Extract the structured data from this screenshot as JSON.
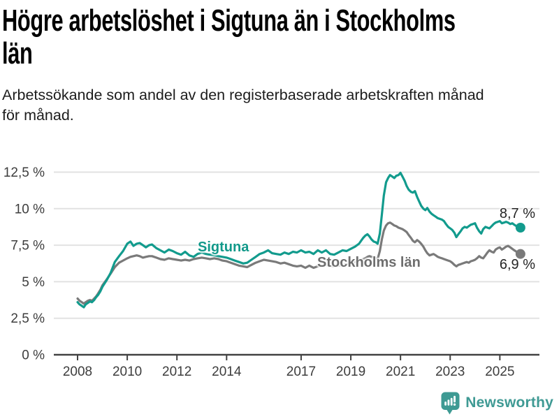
{
  "header": {
    "title_lines": [
      "Högre arbetslöshet i Sigtuna än i Stockholms",
      "län"
    ],
    "subtitle_lines": [
      "Arbetssökande som andel av den registerbaserade arbetskraften månad",
      "för månad."
    ]
  },
  "annotations": {
    "sigtuna_label": "Sigtuna",
    "stockholm_label": "Stockholms län",
    "sigtuna_end_value": "8,7 %",
    "stockholm_end_value": "6,9 %"
  },
  "footer": {
    "brand": "Newsworthy",
    "logo_icon": "bar-chart-speech-bubble-icon"
  },
  "colors": {
    "sigtuna_line": "#129b8d",
    "stockholm_line": "#7a7a7a",
    "grid": "#e2e2e2",
    "axis": "#424242",
    "logo_teal": "#3e9a93"
  },
  "chart_data": {
    "type": "line",
    "title": "Högre arbetslöshet i Sigtuna än i Stockholms län",
    "subtitle": "Arbetssökande som andel av den registerbaserade arbetskraften månad för månad.",
    "x_unit": "year (monthly observations)",
    "grid": true,
    "ylim": [
      0,
      13.2
    ],
    "xlim": [
      2007.9,
      2026.6
    ],
    "y_ticks": [
      {
        "v": 0,
        "label": "0 %"
      },
      {
        "v": 2.5,
        "label": "2,5 %"
      },
      {
        "v": 5,
        "label": "5 %"
      },
      {
        "v": 7.5,
        "label": "7,5 %"
      },
      {
        "v": 10,
        "label": "10 %"
      },
      {
        "v": 12.5,
        "label": "12,5 %"
      }
    ],
    "x_ticks": [
      {
        "v": 2008,
        "label": "2008"
      },
      {
        "v": 2010,
        "label": "2010"
      },
      {
        "v": 2012,
        "label": "2012"
      },
      {
        "v": 2014,
        "label": "2014"
      },
      {
        "v": 2017,
        "label": "2017"
      },
      {
        "v": 2019,
        "label": "2019"
      },
      {
        "v": 2021,
        "label": "2021"
      },
      {
        "v": 2023,
        "label": "2023"
      },
      {
        "v": 2025,
        "label": "2025"
      }
    ],
    "x": [
      2008.0,
      2008.08,
      2008.17,
      2008.25,
      2008.33,
      2008.42,
      2008.5,
      2008.58,
      2008.67,
      2008.75,
      2008.83,
      2008.92,
      2009.0,
      2009.17,
      2009.33,
      2009.5,
      2009.67,
      2009.83,
      2010.0,
      2010.13,
      2010.25,
      2010.38,
      2010.5,
      2010.63,
      2010.75,
      2010.88,
      2011.0,
      2011.17,
      2011.33,
      2011.5,
      2011.67,
      2011.83,
      2012.0,
      2012.17,
      2012.33,
      2012.5,
      2012.67,
      2012.83,
      2013.0,
      2013.17,
      2013.33,
      2013.5,
      2013.67,
      2013.83,
      2014.0,
      2014.17,
      2014.33,
      2014.5,
      2014.67,
      2014.83,
      2015.0,
      2015.17,
      2015.33,
      2015.5,
      2015.67,
      2015.83,
      2016.0,
      2016.17,
      2016.33,
      2016.5,
      2016.67,
      2016.83,
      2017.0,
      2017.17,
      2017.33,
      2017.5,
      2017.67,
      2017.83,
      2018.0,
      2018.17,
      2018.33,
      2018.5,
      2018.67,
      2018.83,
      2019.0,
      2019.17,
      2019.33,
      2019.5,
      2019.58,
      2019.67,
      2019.75,
      2019.83,
      2019.92,
      2020.0,
      2020.08,
      2020.17,
      2020.25,
      2020.33,
      2020.42,
      2020.5,
      2020.58,
      2020.67,
      2020.75,
      2020.83,
      2020.92,
      2021.0,
      2021.08,
      2021.17,
      2021.25,
      2021.33,
      2021.42,
      2021.5,
      2021.58,
      2021.67,
      2021.75,
      2021.83,
      2021.92,
      2022.0,
      2022.08,
      2022.17,
      2022.25,
      2022.33,
      2022.42,
      2022.5,
      2022.58,
      2022.67,
      2022.75,
      2022.83,
      2022.92,
      2023.0,
      2023.08,
      2023.17,
      2023.25,
      2023.33,
      2023.42,
      2023.5,
      2023.58,
      2023.67,
      2023.75,
      2023.83,
      2023.92,
      2024.0,
      2024.08,
      2024.17,
      2024.25,
      2024.33,
      2024.42,
      2024.5,
      2024.58,
      2024.67,
      2024.75,
      2024.83,
      2024.92,
      2025.0,
      2025.08,
      2025.17,
      2025.25,
      2025.33,
      2025.42,
      2025.5,
      2025.58,
      2025.67,
      2025.75,
      2025.83
    ],
    "series": [
      {
        "name": "Sigtuna",
        "color": "#129b8d",
        "end_label": "8,7 %",
        "end_value": 8.7,
        "values": [
          3.6,
          3.45,
          3.35,
          3.25,
          3.45,
          3.55,
          3.65,
          3.6,
          3.75,
          3.95,
          4.1,
          4.35,
          4.65,
          5.1,
          5.6,
          6.35,
          6.75,
          7.1,
          7.6,
          7.75,
          7.45,
          7.6,
          7.65,
          7.5,
          7.35,
          7.5,
          7.55,
          7.3,
          7.15,
          7.0,
          7.2,
          7.1,
          6.95,
          6.85,
          7.05,
          6.8,
          6.7,
          6.9,
          7.0,
          6.9,
          6.85,
          6.8,
          6.75,
          6.7,
          6.65,
          6.55,
          6.45,
          6.35,
          6.25,
          6.3,
          6.5,
          6.7,
          6.9,
          7.0,
          7.15,
          6.95,
          6.9,
          6.85,
          7.0,
          6.9,
          7.05,
          7.0,
          7.15,
          7.0,
          7.05,
          6.9,
          7.15,
          7.0,
          7.15,
          6.9,
          6.85,
          7.0,
          7.15,
          7.1,
          7.25,
          7.4,
          7.6,
          8.0,
          8.15,
          8.25,
          8.1,
          7.9,
          7.75,
          7.7,
          7.6,
          8.3,
          9.6,
          10.9,
          11.8,
          12.1,
          12.3,
          12.2,
          12.1,
          12.25,
          12.3,
          12.45,
          12.2,
          11.9,
          11.55,
          11.3,
          11.15,
          11.1,
          11.2,
          10.8,
          10.5,
          10.2,
          10.0,
          9.9,
          10.05,
          9.8,
          9.65,
          9.55,
          9.45,
          9.35,
          9.3,
          9.25,
          9.15,
          8.95,
          8.75,
          8.65,
          8.55,
          8.35,
          8.05,
          8.25,
          8.45,
          8.65,
          8.75,
          8.7,
          8.8,
          8.9,
          8.95,
          9.0,
          8.7,
          8.45,
          8.3,
          8.6,
          8.75,
          8.7,
          8.65,
          8.8,
          8.95,
          9.05,
          9.1,
          9.15,
          9.0,
          9.05,
          9.1,
          9.05,
          8.95,
          9.0,
          8.9,
          8.8,
          8.75,
          8.7
        ]
      },
      {
        "name": "Stockholms län",
        "color": "#7a7a7a",
        "end_label": "6,9 %",
        "end_value": 6.9,
        "values": [
          3.85,
          3.7,
          3.6,
          3.5,
          3.6,
          3.7,
          3.75,
          3.7,
          3.85,
          4.0,
          4.2,
          4.45,
          4.75,
          5.15,
          5.55,
          6.0,
          6.3,
          6.45,
          6.6,
          6.7,
          6.75,
          6.8,
          6.75,
          6.65,
          6.7,
          6.75,
          6.75,
          6.65,
          6.55,
          6.5,
          6.6,
          6.55,
          6.5,
          6.45,
          6.5,
          6.45,
          6.55,
          6.6,
          6.65,
          6.6,
          6.55,
          6.6,
          6.55,
          6.45,
          6.4,
          6.3,
          6.2,
          6.1,
          6.05,
          6.0,
          6.15,
          6.3,
          6.4,
          6.5,
          6.45,
          6.4,
          6.35,
          6.25,
          6.3,
          6.2,
          6.1,
          6.05,
          6.1,
          5.95,
          6.1,
          5.95,
          6.05,
          6.1,
          6.15,
          6.1,
          6.05,
          6.1,
          6.15,
          6.2,
          6.25,
          6.35,
          6.45,
          6.55,
          6.6,
          6.7,
          6.75,
          6.7,
          6.65,
          6.6,
          6.55,
          7.1,
          7.9,
          8.5,
          8.85,
          9.0,
          9.05,
          8.95,
          8.85,
          8.8,
          8.7,
          8.65,
          8.6,
          8.5,
          8.4,
          8.2,
          8.0,
          7.8,
          7.7,
          7.85,
          7.75,
          7.6,
          7.4,
          7.15,
          6.95,
          6.8,
          6.85,
          6.9,
          6.8,
          6.7,
          6.65,
          6.6,
          6.55,
          6.5,
          6.45,
          6.4,
          6.3,
          6.15,
          6.05,
          6.15,
          6.2,
          6.25,
          6.3,
          6.35,
          6.3,
          6.4,
          6.45,
          6.5,
          6.6,
          6.75,
          6.65,
          6.6,
          6.8,
          7.0,
          7.15,
          7.05,
          7.0,
          7.2,
          7.3,
          7.35,
          7.2,
          7.3,
          7.4,
          7.45,
          7.35,
          7.25,
          7.15,
          7.05,
          6.95,
          6.9
        ]
      }
    ]
  }
}
